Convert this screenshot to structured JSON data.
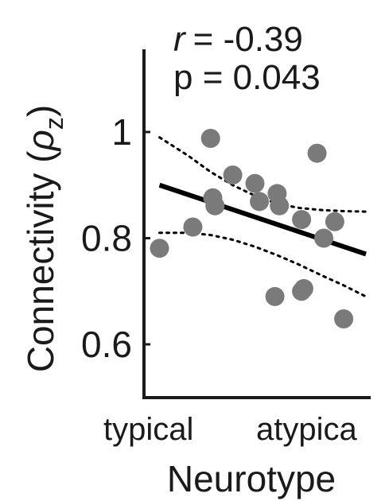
{
  "chart_data": {
    "type": "scatter",
    "xlabel": "Neurotype",
    "ylabel": "Connectivity",
    "ylabel_symbol": "ρ",
    "ylabel_subscript": "z",
    "x_categories": [
      "typical",
      "atypica"
    ],
    "xlim": [
      0,
      1
    ],
    "ylim": [
      0.5,
      1.15
    ],
    "yticks": [
      {
        "value": 0.6,
        "label": "0.6"
      },
      {
        "value": 0.8,
        "label": "0.8"
      },
      {
        "value": 1.0,
        "label": "1"
      }
    ],
    "annotation": {
      "r_symbol": "r",
      "r_value": "= -0.39",
      "p_text": "p = 0.043"
    },
    "points": [
      {
        "x": 0.07,
        "y": 0.781
      },
      {
        "x": 0.22,
        "y": 0.821
      },
      {
        "x": 0.3,
        "y": 0.988
      },
      {
        "x": 0.31,
        "y": 0.876
      },
      {
        "x": 0.32,
        "y": 0.861
      },
      {
        "x": 0.4,
        "y": 0.919
      },
      {
        "x": 0.5,
        "y": 0.903
      },
      {
        "x": 0.52,
        "y": 0.869
      },
      {
        "x": 0.6,
        "y": 0.884
      },
      {
        "x": 0.61,
        "y": 0.861
      },
      {
        "x": 0.59,
        "y": 0.69
      },
      {
        "x": 0.71,
        "y": 0.7
      },
      {
        "x": 0.72,
        "y": 0.705
      },
      {
        "x": 0.71,
        "y": 0.835
      },
      {
        "x": 0.78,
        "y": 0.96
      },
      {
        "x": 0.81,
        "y": 0.8
      },
      {
        "x": 0.86,
        "y": 0.831
      },
      {
        "x": 0.9,
        "y": 0.648
      }
    ],
    "fit_line": {
      "x": [
        0.07,
        1.0
      ],
      "y": [
        0.9,
        0.77
      ]
    },
    "ci_upper": {
      "x": [
        0.07,
        0.2,
        0.3,
        0.4,
        0.5,
        0.6,
        0.7,
        0.8,
        0.9,
        1.0
      ],
      "y": [
        0.99,
        0.955,
        0.925,
        0.9,
        0.88,
        0.865,
        0.857,
        0.853,
        0.851,
        0.85
      ]
    },
    "ci_lower": {
      "x": [
        0.07,
        0.2,
        0.3,
        0.4,
        0.5,
        0.6,
        0.7,
        0.8,
        0.9,
        1.0
      ],
      "y": [
        0.81,
        0.81,
        0.806,
        0.797,
        0.784,
        0.768,
        0.75,
        0.73,
        0.711,
        0.69
      ]
    },
    "colors": {
      "points": "#7a7a7a",
      "fit_line": "#000000",
      "ci": "#000000",
      "axis": "#1a1a1a"
    },
    "grid": false,
    "legend": "none"
  }
}
